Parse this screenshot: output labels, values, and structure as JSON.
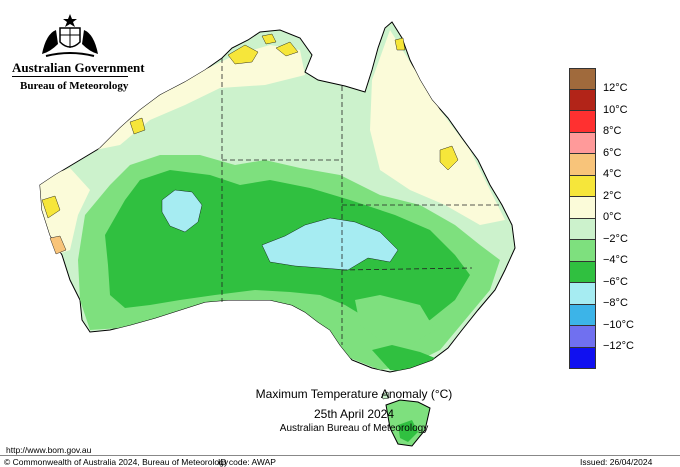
{
  "header": {
    "government": "Australian Government",
    "agency": "Bureau of Meteorology"
  },
  "legend": {
    "items": [
      {
        "label": "",
        "color": "#a06a3c"
      },
      {
        "label": "12°C",
        "color": "#b22418"
      },
      {
        "label": "10°C",
        "color": "#ff3030"
      },
      {
        "label": "8°C",
        "color": "#ff9a9a"
      },
      {
        "label": "6°C",
        "color": "#f8c47a"
      },
      {
        "label": "4°C",
        "color": "#f6e63a"
      },
      {
        "label": "2°C",
        "color": "#fbfbd9"
      },
      {
        "label": "0°C",
        "color": "#ccf2cc"
      },
      {
        "label": "−2°C",
        "color": "#7ee07e"
      },
      {
        "label": "−4°C",
        "color": "#30c040"
      },
      {
        "label": "−6°C",
        "color": "#a6ecf2"
      },
      {
        "label": "−8°C",
        "color": "#3cb4e8"
      },
      {
        "label": "−10°C",
        "color": "#7070f0"
      },
      {
        "label": "−12°C",
        "color": "#1010f0"
      }
    ]
  },
  "title": {
    "line1": "Maximum Temperature Anomaly (°C)",
    "line2": "25th April 2024",
    "line3": "Australian Bureau of Meteorology"
  },
  "footer": {
    "url": "http://www.bom.gov.au",
    "copyright": "© Commonwealth of Australia 2024, Bureau of Meteorology",
    "id_code": "ID code: AWAP",
    "issued": "Issued: 26/04/2024"
  }
}
